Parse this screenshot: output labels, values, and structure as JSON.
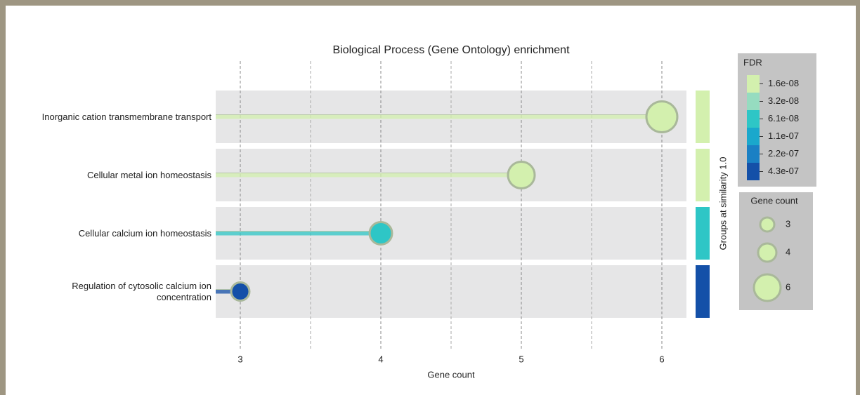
{
  "chart_data": {
    "type": "lollipop",
    "title": "Biological Process (Gene Ontology) enrichment",
    "xlabel": "Gene count",
    "categories": [
      "Inorganic cation transmembrane transport",
      "Cellular metal ion homeostasis",
      "Cellular calcium ion homeostasis",
      "Regulation of cytosolic calcium ion concentration"
    ],
    "values": [
      6,
      5,
      4,
      3
    ],
    "fdr": [
      1.6e-08,
      1.6e-08,
      6.1e-08,
      4.3e-07
    ],
    "colors": [
      "#d3f0ae",
      "#d3f0ae",
      "#2ec6c6",
      "#1450a8"
    ],
    "xlim": [
      2.825,
      6.175
    ],
    "xticks": [
      3,
      4,
      5,
      6
    ],
    "xminor": [
      3.5,
      4.5,
      5.5
    ],
    "grid": true,
    "group_label": "Groups at similarity 1.0",
    "fdr_legend": {
      "title": "FDR",
      "ticks": [
        {
          "value": 1.6e-08,
          "label": "1.6e-08"
        },
        {
          "value": 3.2e-08,
          "label": "3.2e-08"
        },
        {
          "value": 6.1e-08,
          "label": "6.1e-08"
        },
        {
          "value": 1.1e-07,
          "label": "1.1e-07"
        },
        {
          "value": 2.2e-07,
          "label": "2.2e-07"
        },
        {
          "value": 4.3e-07,
          "label": "4.3e-07"
        }
      ],
      "colors": [
        "#d3f0ae",
        "#96dcc0",
        "#2ec6c6",
        "#1aa8cc",
        "#1a80c4",
        "#1450a8"
      ]
    },
    "size_legend": {
      "title": "Gene count",
      "values": [
        3,
        4,
        6
      ]
    }
  }
}
